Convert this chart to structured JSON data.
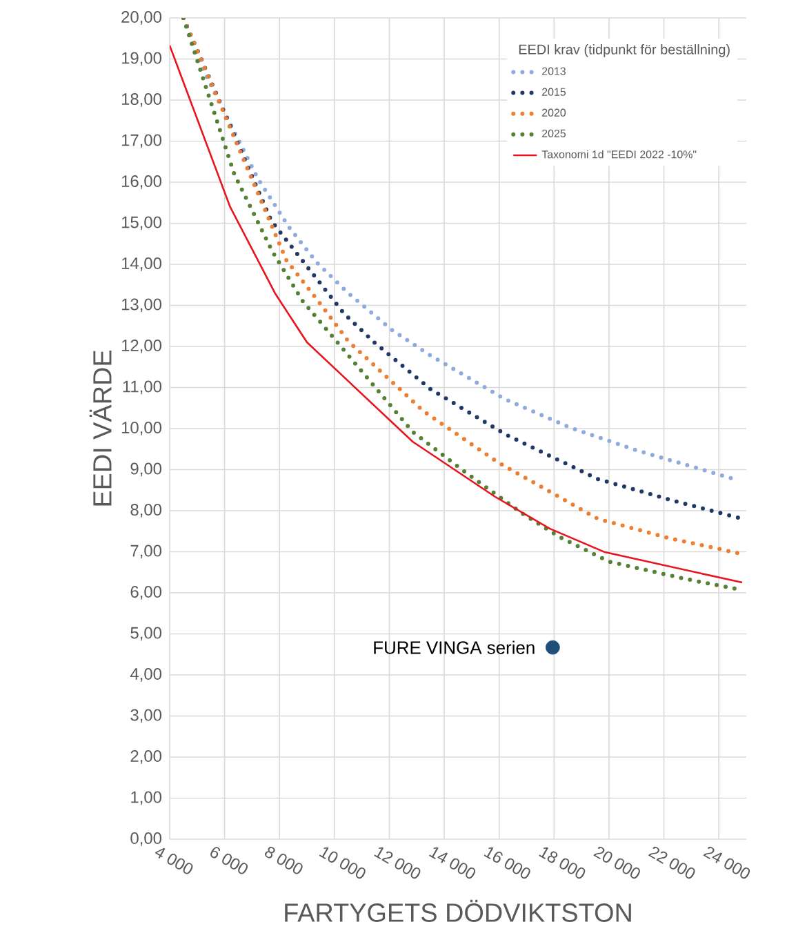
{
  "chart_data": {
    "type": "line",
    "xlabel": "FARTYGETS DÖDVIKTSTON",
    "ylabel": "EEDI VÄRDE",
    "legend_title": "EEDI krav (tidpunkt för beställning)",
    "legend": "top right",
    "grid": true,
    "xlim": [
      4000,
      25000
    ],
    "ylim": [
      0,
      20
    ],
    "xticks": [
      {
        "value": 4000,
        "label": "4 000"
      },
      {
        "value": 6000,
        "label": "6 000"
      },
      {
        "value": 8000,
        "label": "8 000"
      },
      {
        "value": 10000,
        "label": "10 000"
      },
      {
        "value": 12000,
        "label": "12 000"
      },
      {
        "value": 14000,
        "label": "14 000"
      },
      {
        "value": 16000,
        "label": "16 000"
      },
      {
        "value": 18000,
        "label": "18 000"
      },
      {
        "value": 20000,
        "label": "20 000"
      },
      {
        "value": 22000,
        "label": "22 000"
      },
      {
        "value": 24000,
        "label": "24 000"
      }
    ],
    "yticks": [
      {
        "value": 0,
        "label": "0,00"
      },
      {
        "value": 1,
        "label": "1,00"
      },
      {
        "value": 2,
        "label": "2,00"
      },
      {
        "value": 3,
        "label": "3,00"
      },
      {
        "value": 4,
        "label": "4,00"
      },
      {
        "value": 5,
        "label": "5,00"
      },
      {
        "value": 6,
        "label": "6,00"
      },
      {
        "value": 7,
        "label": "7,00"
      },
      {
        "value": 8,
        "label": "8,00"
      },
      {
        "value": 9,
        "label": "9,00"
      },
      {
        "value": 10,
        "label": "10,00"
      },
      {
        "value": 11,
        "label": "11,00"
      },
      {
        "value": 12,
        "label": "12,00"
      },
      {
        "value": 13,
        "label": "13,00"
      },
      {
        "value": 14,
        "label": "14,00"
      },
      {
        "value": 15,
        "label": "15,00"
      },
      {
        "value": 16,
        "label": "16,00"
      },
      {
        "value": 17,
        "label": "17,00"
      },
      {
        "value": 18,
        "label": "18,00"
      },
      {
        "value": 19,
        "label": "19,00"
      },
      {
        "value": 20,
        "label": "20,00"
      }
    ],
    "series": [
      {
        "name": "2013",
        "color": "#8faadc",
        "line_style": "dotted",
        "x": [
          4500,
          5100,
          7200,
          8350,
          9350,
          10500,
          12100,
          13450,
          16200,
          18600,
          21100,
          23200,
          24700
        ],
        "values": [
          20.0,
          18.9,
          16.1,
          14.9,
          14.05,
          13.3,
          12.4,
          11.8,
          10.72,
          10.02,
          9.45,
          9.04,
          8.74
        ]
      },
      {
        "name": "2015",
        "color": "#1f3864",
        "line_style": "dotted",
        "x": [
          4500,
          7700,
          9000,
          10350,
          11450,
          13500,
          16250,
          19600,
          22200,
          24700
        ],
        "values": [
          20.0,
          15.06,
          13.95,
          12.8,
          12.1,
          10.96,
          9.85,
          8.77,
          8.27,
          7.83
        ]
      },
      {
        "name": "2020",
        "color": "#ed7d31",
        "line_style": "dotted",
        "x": [
          4500,
          8250,
          9600,
          10500,
          13250,
          15950,
          19600,
          22200,
          24750
        ],
        "values": [
          20.0,
          14.1,
          12.94,
          12.13,
          10.42,
          9.18,
          7.8,
          7.33,
          6.96
        ]
      },
      {
        "name": "2025",
        "color": "#548235",
        "line_style": "dotted",
        "x": [
          4500,
          6350,
          7750,
          8850,
          12850,
          14700,
          16850,
          18200,
          20000,
          22700,
          24750
        ],
        "values": [
          20.0,
          16.2,
          14.3,
          13.1,
          9.92,
          8.97,
          7.93,
          7.36,
          6.76,
          6.35,
          6.08
        ]
      },
      {
        "name": "Taxonomi 1d \"EEDI 2022  -10%\"",
        "color": "#e8141e",
        "line_style": "solid",
        "x": [
          4000,
          6200,
          7850,
          9000,
          12850,
          15850,
          17850,
          19850,
          24850
        ],
        "values": [
          19.33,
          15.4,
          13.28,
          12.1,
          9.68,
          8.34,
          7.56,
          6.99,
          6.25
        ]
      },
      {
        "name": "FURE VINGA serien",
        "type": "scatter",
        "color": "#1f4e79",
        "x": [
          17950
        ],
        "values": [
          4.67
        ]
      }
    ]
  }
}
